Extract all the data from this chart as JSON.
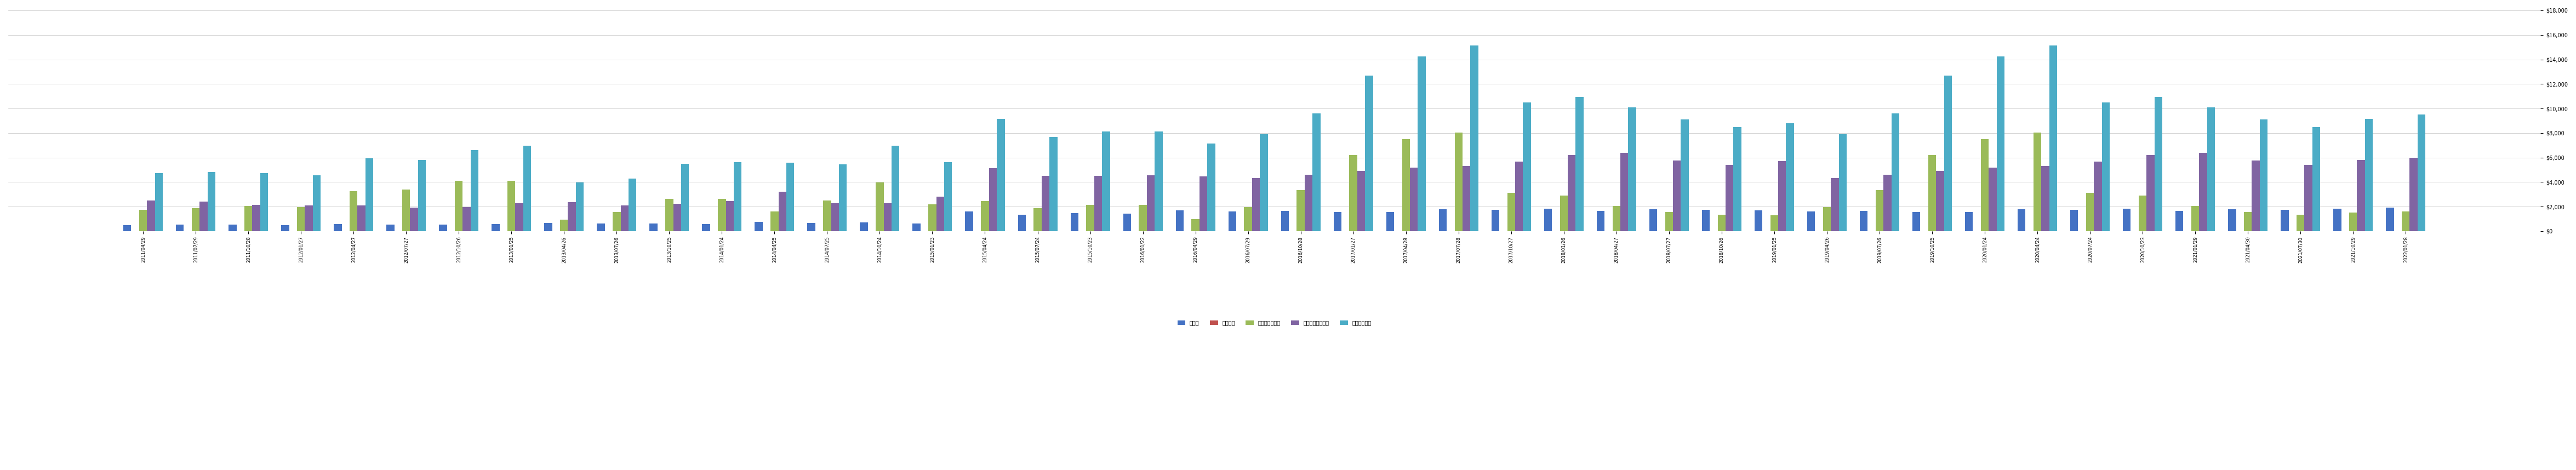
{
  "categories": [
    "2011/04/29",
    "2011/07/29",
    "2011/10/28",
    "2012/01/27",
    "2012/04/27",
    "2012/07/27",
    "2012/10/26",
    "2013/01/25",
    "2013/04/26",
    "2013/07/26",
    "2013/10/25",
    "2014/01/24",
    "2014/04/25",
    "2014/07/25",
    "2014/10/24",
    "2015/01/23",
    "2015/04/24",
    "2015/07/24",
    "2015/10/23",
    "2016/01/22",
    "2016/04/29",
    "2016/07/29",
    "2016/10/28",
    "2017/01/27",
    "2017/04/28",
    "2017/07/28",
    "2017/10/27",
    "2018/01/26",
    "2018/04/27",
    "2018/07/27",
    "2018/10/26",
    "2019/01/25",
    "2019/04/26",
    "2019/07/26",
    "2019/10/25",
    "2020/01/24",
    "2020/04/24",
    "2020/07/24",
    "2020/10/23",
    "2021/01/29",
    "2021/04/30",
    "2021/07/30",
    "2021/10/29",
    "2022/01/28"
  ],
  "買掛金": [
    495,
    537,
    543,
    491,
    565,
    521,
    551,
    569,
    681,
    627,
    620,
    567,
    742,
    685,
    723,
    635,
    1610,
    1321,
    1447,
    1437,
    1709,
    1615,
    1659,
    1557,
    1555,
    1759,
    1718,
    1809,
    1628,
    1789,
    1742,
    1709,
    1615,
    1659,
    1557,
    1555,
    1759,
    1718,
    1809,
    1628,
    1789,
    1742,
    1845,
    1900
  ],
  "繰延収益": [
    0,
    0,
    0,
    0,
    0,
    0,
    0,
    0,
    0,
    0,
    0,
    0,
    0,
    0,
    0,
    0,
    0,
    0,
    0,
    0,
    0,
    0,
    0,
    0,
    0,
    0,
    0,
    0,
    0,
    0,
    0,
    0,
    0,
    0,
    0,
    0,
    0,
    0,
    0,
    0,
    0,
    0,
    0,
    0
  ],
  "短期有利子負債": [
    1723,
    1857,
    2050,
    1972,
    3274,
    3391,
    4097,
    4104,
    910,
    1543,
    2647,
    2618,
    1613,
    2477,
    3970,
    2185,
    2434,
    1850,
    2158,
    2153,
    993,
    1947,
    3367,
    6226,
    7520,
    8058,
    3131,
    2902,
    2058,
    1545,
    1343,
    1300,
    1947,
    3367,
    6226,
    7520,
    8058,
    3131,
    2902,
    2058,
    1545,
    1343,
    1500,
    1600
  ],
  "その他の流動負債": [
    2508,
    2411,
    2141,
    2099,
    2088,
    1899,
    1973,
    2285,
    2359,
    2115,
    2229,
    2447,
    3204,
    2271,
    2259,
    2793,
    5129,
    4489,
    4521,
    4551,
    4463,
    4334,
    4575,
    4889,
    5189,
    5331,
    5647,
    6222,
    6398,
    5778,
    5378,
    5700,
    4334,
    4575,
    4889,
    5189,
    5331,
    5647,
    6222,
    6398,
    5778,
    5378,
    5800,
    6000
  ],
  "流動負債合計": [
    4726,
    4805,
    4734,
    4562,
    5927,
    5811,
    6621,
    6958,
    3950,
    4285,
    5496,
    5632,
    5559,
    5433,
    6952,
    5613,
    9173,
    7660,
    8126,
    8141,
    7165,
    7896,
    9601,
    12672,
    14264,
    15148,
    10496,
    10933,
    10084,
    9112,
    8463,
    8800,
    7896,
    9601,
    12672,
    14264,
    15148,
    10496,
    10933,
    10084,
    9112,
    8463,
    9145,
    9500
  ],
  "colors": {
    "買掛金": "#4472c4",
    "繰延収益": "#c0504d",
    "短期有利子負債": "#9bbb59",
    "その他の流動負債": "#8064a2",
    "流動負債合計": "#4bacc6"
  },
  "ylim": [
    0,
    18000
  ],
  "yticks": [
    0,
    2000,
    4000,
    6000,
    8000,
    10000,
    12000,
    14000,
    16000,
    18000
  ],
  "ylabel_right": "$18,000",
  "background": "#ffffff",
  "grid_color": "#c0c0c0"
}
